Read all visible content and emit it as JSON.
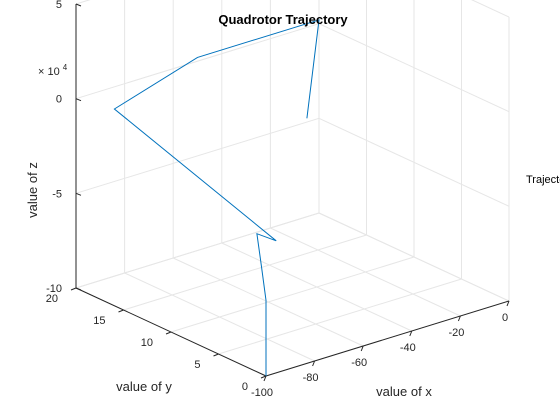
{
  "chart_data": {
    "type": "line",
    "projection": "3d",
    "title": "Quadrotor Trajectory",
    "xlabel": "value of x",
    "ylabel": "value of y",
    "zlabel": "value of z",
    "xlim": [
      -100,
      0
    ],
    "ylim": [
      0,
      20
    ],
    "zlim": [
      -100000,
      50000
    ],
    "xticks": [
      -100,
      -80,
      -60,
      -40,
      -20,
      0
    ],
    "xtick_labels": [
      "-100",
      "-80",
      "-60",
      "-40",
      "-20",
      "0"
    ],
    "yticks": [
      0,
      5,
      10,
      15,
      20
    ],
    "ytick_labels": [
      "0",
      "5",
      "10",
      "15",
      "20"
    ],
    "zticks": [
      -100000,
      -50000,
      0,
      50000
    ],
    "ztick_labels": [
      "-10",
      "-5",
      "0",
      "5"
    ],
    "z_multiplier_base": "× 10",
    "z_multiplier_exponent": "4",
    "grid": true,
    "series": [
      {
        "name": "Trajectory",
        "color": "#0072bd",
        "x": [
          -100,
          -100,
          -100,
          -98,
          -92,
          -88,
          -92,
          -50,
          0,
          -5
        ],
        "y": [
          0,
          0,
          0,
          1,
          3,
          2,
          18,
          20,
          20,
          20
        ],
        "z": [
          -100000,
          -80000,
          -60000,
          -45000,
          -35000,
          -38000,
          -4000,
          2000,
          2000,
          -48000
        ]
      }
    ],
    "legend": [
      "Trajectory"
    ],
    "legend_position": "right"
  }
}
